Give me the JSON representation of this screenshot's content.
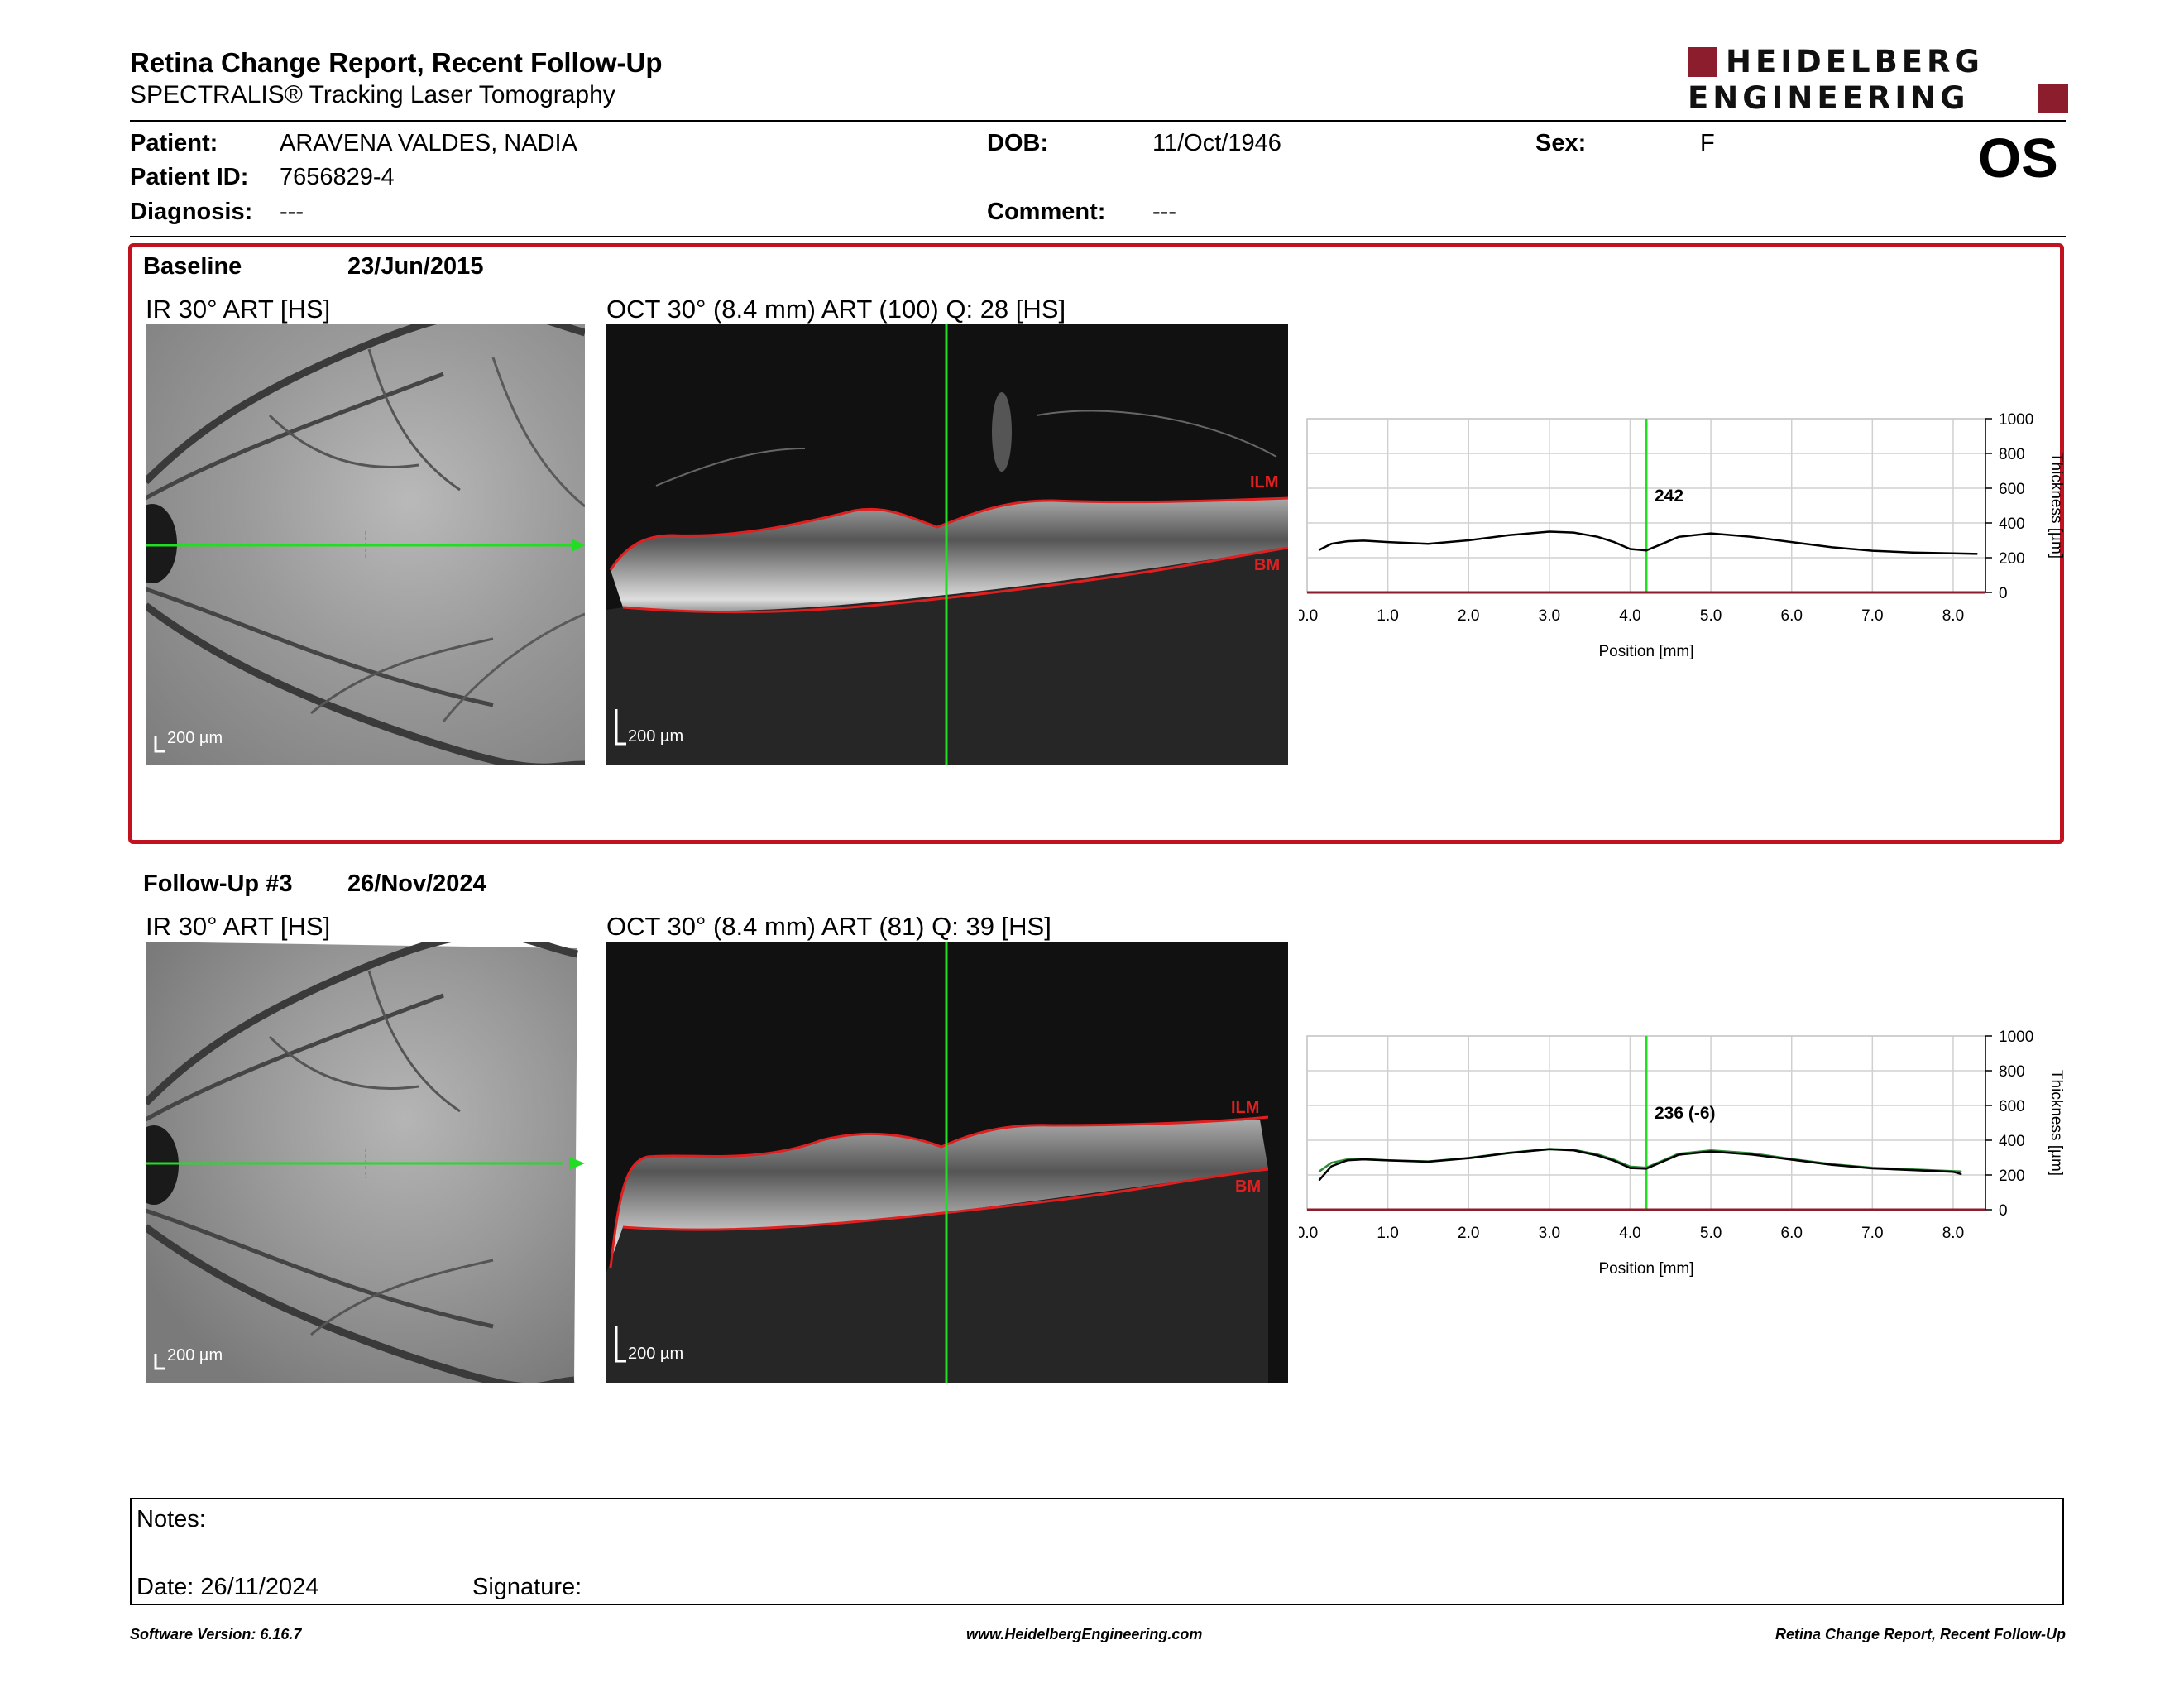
{
  "header": {
    "title": "Retina Change Report, Recent Follow-Up",
    "subtitle": "SPECTRALIS® Tracking Laser Tomography",
    "logo_line1": "HEIDELBERG",
    "logo_line2": "ENGINEERING"
  },
  "patient": {
    "patient_label": "Patient:",
    "patient_value": "ARAVENA VALDES, NADIA",
    "id_label": "Patient ID:",
    "id_value": "7656829-4",
    "diagnosis_label": "Diagnosis:",
    "diagnosis_value": "---",
    "dob_label": "DOB:",
    "dob_value": "11/Oct/1946",
    "comment_label": "Comment:",
    "comment_value": "---",
    "sex_label": "Sex:",
    "sex_value": "F",
    "eye": "OS"
  },
  "baseline": {
    "label": "Baseline",
    "date": "23/Jun/2015",
    "ir_label": "IR 30° ART [HS]",
    "oct_label": "OCT 30° (8.4 mm) ART (100) Q: 28 [HS]",
    "ir_scale": "200 µm",
    "oct_scale": "200 µm",
    "ilm": "ILM",
    "bm": "BM",
    "cursor_value": "242"
  },
  "followup": {
    "label": "Follow-Up #3",
    "date": "26/Nov/2024",
    "ir_label": "IR 30° ART [HS]",
    "oct_label": "OCT 30° (8.4 mm) ART (81) Q: 39 [HS]",
    "ir_scale": "200 µm",
    "oct_scale": "200 µm",
    "ilm": "ILM",
    "bm": "BM",
    "cursor_value": "236 (-6)"
  },
  "chart_data": [
    {
      "type": "line",
      "title": "",
      "xlabel": "Position [mm]",
      "ylabel": "Thickness [µm]",
      "xlim": [
        0,
        8.4
      ],
      "ylim": [
        0,
        1000
      ],
      "x_ticks": [
        "0.0",
        "1.0",
        "2.0",
        "3.0",
        "4.0",
        "5.0",
        "6.0",
        "7.0",
        "8.0"
      ],
      "y_ticks": [
        "0",
        "200",
        "400",
        "600",
        "800",
        "1000"
      ],
      "cursor_x": 4.2,
      "cursor_label": "242",
      "series": [
        {
          "color": "#000000",
          "x": [
            0.15,
            0.3,
            0.5,
            0.7,
            1.0,
            1.5,
            2.0,
            2.5,
            3.0,
            3.3,
            3.6,
            3.8,
            4.0,
            4.2,
            4.4,
            4.6,
            5.0,
            5.5,
            6.0,
            6.5,
            7.0,
            7.5,
            8.0,
            8.3
          ],
          "y": [
            245,
            280,
            295,
            298,
            290,
            280,
            300,
            330,
            350,
            345,
            320,
            290,
            250,
            242,
            280,
            320,
            340,
            320,
            290,
            260,
            240,
            230,
            225,
            222
          ]
        }
      ]
    },
    {
      "type": "line",
      "title": "",
      "xlabel": "Position [mm]",
      "ylabel": "Thickness [µm]",
      "xlim": [
        0,
        8.4
      ],
      "ylim": [
        0,
        1000
      ],
      "x_ticks": [
        "0.0",
        "1.0",
        "2.0",
        "3.0",
        "4.0",
        "5.0",
        "6.0",
        "7.0",
        "8.0"
      ],
      "y_ticks": [
        "0",
        "200",
        "400",
        "600",
        "800",
        "1000"
      ],
      "cursor_x": 4.2,
      "cursor_label": "236 (-6)",
      "series": [
        {
          "color": "#2e8b3a",
          "x": [
            0.15,
            0.3,
            0.5,
            0.7,
            1.0,
            1.5,
            2.0,
            2.5,
            3.0,
            3.3,
            3.6,
            3.8,
            4.0,
            4.2,
            4.4,
            4.6,
            5.0,
            5.5,
            6.0,
            6.5,
            7.0,
            7.5,
            8.0,
            8.1
          ],
          "y": [
            220,
            270,
            290,
            292,
            285,
            278,
            298,
            328,
            350,
            345,
            318,
            288,
            248,
            242,
            282,
            322,
            342,
            325,
            292,
            262,
            242,
            232,
            222,
            220
          ]
        },
        {
          "color": "#000000",
          "x": [
            0.15,
            0.3,
            0.5,
            0.7,
            1.0,
            1.5,
            2.0,
            2.5,
            3.0,
            3.3,
            3.6,
            3.8,
            4.0,
            4.2,
            4.4,
            4.6,
            5.0,
            5.5,
            6.0,
            6.5,
            7.0,
            7.5,
            8.0,
            8.1
          ],
          "y": [
            170,
            250,
            285,
            290,
            284,
            276,
            296,
            326,
            348,
            342,
            312,
            282,
            240,
            236,
            276,
            316,
            335,
            318,
            288,
            258,
            238,
            228,
            218,
            205
          ]
        }
      ]
    }
  ],
  "notes": {
    "notes_label": "Notes:",
    "date_label": "Date: 26/11/2024",
    "signature_label": "Signature:"
  },
  "footer": {
    "software": "Software Version: 6.16.7",
    "website": "www.HeidelbergEngineering.com",
    "report": "Retina Change Report, Recent Follow-Up"
  }
}
